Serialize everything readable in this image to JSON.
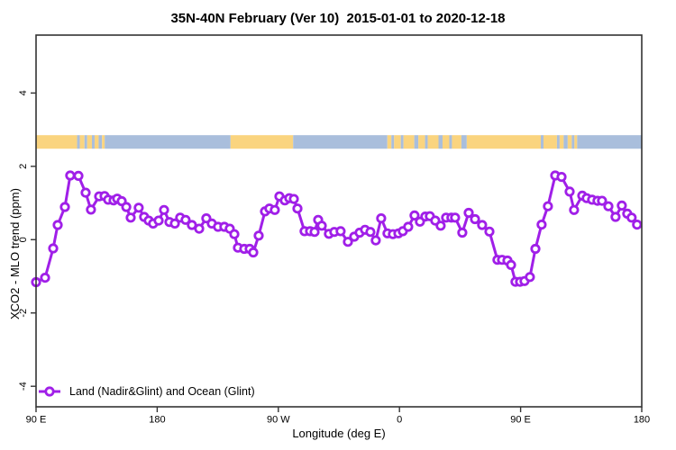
{
  "title": "35N-40N February (Ver 10)  2015-01-01 to 2020-12-18",
  "legend": {
    "label": "Land (Nadir&Glint) and Ocean (Glint)"
  },
  "colors": {
    "series": "#A01FE8",
    "marker_fill": "#ffffff",
    "land_band": "#FAD47F",
    "ocean_band": "#A9BEDC",
    "axis": "#333333",
    "background": "#ffffff"
  },
  "chart_data": {
    "type": "line",
    "title": "35N-40N February (Ver 10)  2015-01-01 to 2020-12-18",
    "xlabel": "Longitude (deg E)",
    "ylabel": "XCO2 - MLO trend (ppm)",
    "xlim": [
      90,
      540
    ],
    "ylim": [
      -4.56,
      5.58
    ],
    "grid": false,
    "legend_position": "bottom-left",
    "x_ticks": [
      {
        "value": 90,
        "label": "90 E"
      },
      {
        "value": 180,
        "label": "180"
      },
      {
        "value": 270,
        "label": "90 W"
      },
      {
        "value": 360,
        "label": "0"
      },
      {
        "value": 450,
        "label": "90 E"
      },
      {
        "value": 540,
        "label": "180"
      }
    ],
    "y_ticks": [
      {
        "value": -4,
        "label": "-4"
      },
      {
        "value": -2,
        "label": "-2"
      },
      {
        "value": 0,
        "label": "0"
      },
      {
        "value": 2,
        "label": "2"
      },
      {
        "value": 4,
        "label": "4"
      }
    ],
    "surface_band": {
      "description": "land/ocean surface-type strip",
      "y_from": 2.48,
      "y_to": 2.85,
      "segments": [
        {
          "from": 90,
          "to": 120.5,
          "surface": "land"
        },
        {
          "from": 120.5,
          "to": 122.5,
          "surface": "ocean"
        },
        {
          "from": 122.5,
          "to": 126,
          "surface": "land"
        },
        {
          "from": 126,
          "to": 128,
          "surface": "ocean"
        },
        {
          "from": 128,
          "to": 131.5,
          "surface": "land"
        },
        {
          "from": 131.5,
          "to": 133.5,
          "surface": "ocean"
        },
        {
          "from": 133.5,
          "to": 136.5,
          "surface": "land"
        },
        {
          "from": 136.5,
          "to": 139,
          "surface": "ocean"
        },
        {
          "from": 139,
          "to": 141,
          "surface": "land"
        },
        {
          "from": 141,
          "to": 234.5,
          "surface": "ocean"
        },
        {
          "from": 234.5,
          "to": 281,
          "surface": "land"
        },
        {
          "from": 281,
          "to": 351,
          "surface": "ocean"
        },
        {
          "from": 351,
          "to": 354,
          "surface": "land"
        },
        {
          "from": 354,
          "to": 356,
          "surface": "ocean"
        },
        {
          "from": 356,
          "to": 361,
          "surface": "land"
        },
        {
          "from": 361,
          "to": 363,
          "surface": "ocean"
        },
        {
          "from": 363,
          "to": 371,
          "surface": "land"
        },
        {
          "from": 371,
          "to": 374,
          "surface": "ocean"
        },
        {
          "from": 374,
          "to": 379,
          "surface": "land"
        },
        {
          "from": 379,
          "to": 381,
          "surface": "ocean"
        },
        {
          "from": 381,
          "to": 389,
          "surface": "land"
        },
        {
          "from": 389,
          "to": 392,
          "surface": "ocean"
        },
        {
          "from": 392,
          "to": 397,
          "surface": "land"
        },
        {
          "from": 397,
          "to": 399,
          "surface": "ocean"
        },
        {
          "from": 399,
          "to": 406,
          "surface": "land"
        },
        {
          "from": 406,
          "to": 410,
          "surface": "ocean"
        },
        {
          "from": 410,
          "to": 465,
          "surface": "land"
        },
        {
          "from": 465,
          "to": 467,
          "surface": "ocean"
        },
        {
          "from": 467,
          "to": 477,
          "surface": "land"
        },
        {
          "from": 477,
          "to": 479,
          "surface": "ocean"
        },
        {
          "from": 479,
          "to": 482,
          "surface": "land"
        },
        {
          "from": 482,
          "to": 485,
          "surface": "ocean"
        },
        {
          "from": 485,
          "to": 488,
          "surface": "land"
        },
        {
          "from": 488,
          "to": 490,
          "surface": "ocean"
        },
        {
          "from": 490,
          "to": 492,
          "surface": "land"
        },
        {
          "from": 492,
          "to": 540,
          "surface": "ocean"
        }
      ]
    },
    "series": [
      {
        "name": "Land (Nadir&Glint) and Ocean (Glint)",
        "marker": "open-circle",
        "points": [
          [
            90.0,
            -1.16
          ],
          [
            96.7,
            -1.04
          ],
          [
            102.7,
            -0.24
          ],
          [
            106.1,
            0.4
          ],
          [
            111.4,
            0.89
          ],
          [
            115.4,
            1.75
          ],
          [
            121.5,
            1.74
          ],
          [
            126.8,
            1.28
          ],
          [
            130.8,
            0.82
          ],
          [
            136.9,
            1.18
          ],
          [
            140.9,
            1.19
          ],
          [
            143.6,
            1.09
          ],
          [
            147.6,
            1.07
          ],
          [
            150.3,
            1.12
          ],
          [
            153.6,
            1.05
          ],
          [
            157.0,
            0.89
          ],
          [
            160.3,
            0.6
          ],
          [
            166.3,
            0.87
          ],
          [
            170.3,
            0.62
          ],
          [
            173.7,
            0.52
          ],
          [
            177.0,
            0.44
          ],
          [
            181.1,
            0.52
          ],
          [
            185.1,
            0.81
          ],
          [
            189.1,
            0.48
          ],
          [
            193.1,
            0.44
          ],
          [
            197.1,
            0.6
          ],
          [
            201.1,
            0.54
          ],
          [
            205.8,
            0.4
          ],
          [
            211.2,
            0.3
          ],
          [
            216.5,
            0.58
          ],
          [
            220.6,
            0.44
          ],
          [
            225.2,
            0.35
          ],
          [
            229.9,
            0.35
          ],
          [
            233.9,
            0.3
          ],
          [
            237.3,
            0.15
          ],
          [
            240.0,
            -0.22
          ],
          [
            244.7,
            -0.25
          ],
          [
            248.7,
            -0.25
          ],
          [
            251.4,
            -0.35
          ],
          [
            255.4,
            0.11
          ],
          [
            260.1,
            0.77
          ],
          [
            263.4,
            0.85
          ],
          [
            267.4,
            0.81
          ],
          [
            270.8,
            1.18
          ],
          [
            274.8,
            1.07
          ],
          [
            278.2,
            1.13
          ],
          [
            281.5,
            1.11
          ],
          [
            284.2,
            0.85
          ],
          [
            289.5,
            0.23
          ],
          [
            293.6,
            0.23
          ],
          [
            296.9,
            0.21
          ],
          [
            299.6,
            0.54
          ],
          [
            302.3,
            0.38
          ],
          [
            307.6,
            0.16
          ],
          [
            311.6,
            0.21
          ],
          [
            316.3,
            0.23
          ],
          [
            321.7,
            -0.06
          ],
          [
            326.4,
            0.08
          ],
          [
            330.4,
            0.19
          ],
          [
            334.4,
            0.27
          ],
          [
            338.4,
            0.21
          ],
          [
            342.4,
            -0.02
          ],
          [
            346.4,
            0.58
          ],
          [
            351.1,
            0.17
          ],
          [
            355.1,
            0.15
          ],
          [
            359.2,
            0.17
          ],
          [
            362.5,
            0.23
          ],
          [
            366.5,
            0.35
          ],
          [
            371.2,
            0.66
          ],
          [
            375.2,
            0.49
          ],
          [
            379.2,
            0.63
          ],
          [
            382.6,
            0.64
          ],
          [
            386.6,
            0.52
          ],
          [
            390.6,
            0.38
          ],
          [
            394.6,
            0.6
          ],
          [
            398.6,
            0.6
          ],
          [
            401.3,
            0.6
          ],
          [
            406.7,
            0.19
          ],
          [
            411.4,
            0.73
          ],
          [
            416.1,
            0.56
          ],
          [
            421.4,
            0.4
          ],
          [
            426.8,
            0.22
          ],
          [
            432.8,
            -0.55
          ],
          [
            436.2,
            -0.55
          ],
          [
            440.2,
            -0.57
          ],
          [
            442.9,
            -0.69
          ],
          [
            446.2,
            -1.15
          ],
          [
            449.6,
            -1.15
          ],
          [
            452.9,
            -1.13
          ],
          [
            456.9,
            -1.02
          ],
          [
            461.0,
            -0.25
          ],
          [
            465.6,
            0.41
          ],
          [
            470.3,
            0.91
          ],
          [
            475.7,
            1.75
          ],
          [
            480.4,
            1.71
          ],
          [
            486.4,
            1.31
          ],
          [
            489.7,
            0.81
          ],
          [
            495.8,
            1.2
          ],
          [
            499.1,
            1.13
          ],
          [
            503.1,
            1.09
          ],
          [
            507.1,
            1.06
          ],
          [
            510.5,
            1.06
          ],
          [
            515.2,
            0.91
          ],
          [
            520.5,
            0.62
          ],
          [
            525.2,
            0.93
          ],
          [
            529.2,
            0.71
          ],
          [
            532.5,
            0.6
          ],
          [
            536.5,
            0.41
          ]
        ]
      }
    ]
  }
}
